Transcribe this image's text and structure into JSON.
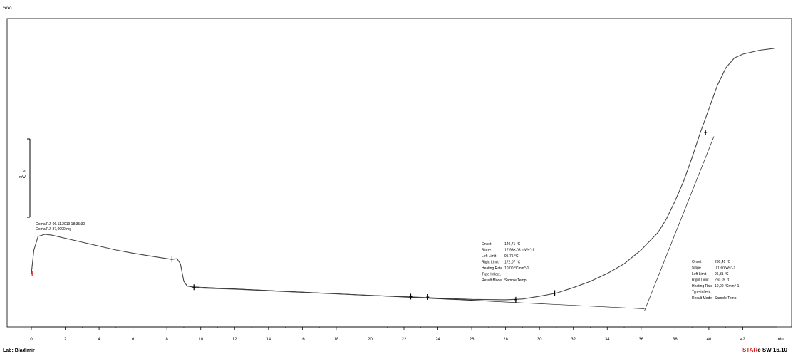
{
  "colors": {
    "curve": "#444444",
    "marker": "#d62728",
    "frame": "#000000",
    "brand": "#d62728"
  },
  "header": {
    "exo_label": "^exo"
  },
  "scale_bar": {
    "value": "20",
    "unit": "mW",
    "value_mw": 20
  },
  "sample": {
    "line1": "Goma PJ, 06.11.2019 18:35:30",
    "line2": "Goma PJ, 37,9000 mg"
  },
  "annotation1": {
    "rows": [
      {
        "key": "Onset",
        "value": "140,71 °C"
      },
      {
        "key": "Slope",
        "value": "17,93e-03 mWs^-1"
      },
      {
        "key": "Left Limit",
        "value": "95,75 °C"
      },
      {
        "key": "Right Limit",
        "value": "172,07 °C"
      },
      {
        "key": "Heating Rate",
        "value": "10,00 °Cmin^-1"
      },
      {
        "key": "Type Inflect.",
        "value": ""
      },
      {
        "key": "Result Mode",
        "value": "Sample Temp"
      }
    ]
  },
  "annotation2": {
    "rows": [
      {
        "key": "Onset",
        "value": "230,41 °C"
      },
      {
        "key": "Slope",
        "value": "0,19 mWs^-1"
      },
      {
        "key": "Left Limit",
        "value": "96,31 °C"
      },
      {
        "key": "Right Limit",
        "value": "260,09 °C"
      },
      {
        "key": "Heating Rate",
        "value": "10,00 °Cmin^-1"
      },
      {
        "key": "Type Inflect.",
        "value": ""
      },
      {
        "key": "Result Mode",
        "value": "Sample Temp"
      }
    ]
  },
  "footer": {
    "lab": "Lab: Bladimir",
    "brand_prefix": "STAR",
    "brand_suffix": "e SW 16.10"
  },
  "chart_data": {
    "type": "line",
    "xlabel": "min",
    "xlim": [
      0,
      44
    ],
    "x_ticks": [
      0,
      2,
      4,
      6,
      8,
      10,
      12,
      14,
      16,
      18,
      20,
      22,
      24,
      26,
      28,
      30,
      32,
      34,
      36,
      38,
      40,
      42
    ],
    "series": [
      {
        "values_note": "heat flow curve, y in mW (relative, exo up)",
        "x": [
          0,
          0.15,
          0.4,
          0.8,
          1.2,
          2,
          3,
          4,
          5,
          6,
          7,
          8,
          8.3,
          8.6,
          8.8,
          9.0,
          9.2,
          9.6,
          10,
          12,
          14,
          16,
          18,
          20,
          22,
          24,
          26,
          28,
          29,
          30,
          31,
          32,
          33,
          34,
          35,
          36,
          37,
          37.5,
          38,
          38.5,
          39,
          39.5,
          40,
          40.5,
          41,
          41.5,
          42,
          43,
          43.9
        ],
        "y": [
          6,
          12,
          15.5,
          16,
          15.8,
          15,
          14,
          13,
          12,
          11.2,
          10.5,
          9.8,
          9.6,
          9.8,
          8.5,
          4,
          2.8,
          2.5,
          2.3,
          2,
          1.6,
          1.2,
          0.8,
          0.4,
          0.1,
          -0.3,
          -0.6,
          -0.7,
          -0.5,
          0.2,
          1,
          2.4,
          4,
          6,
          8.5,
          12,
          16.5,
          20,
          24.5,
          29.5,
          35.5,
          42,
          48,
          54,
          58.5,
          61,
          62,
          63,
          63.5
        ]
      }
    ],
    "onset_tangents": [
      {
        "x": [
          9.5,
          27.5
        ],
        "y": [
          2.6,
          -1.1
        ]
      },
      {
        "x": [
          9.5,
          36.2
        ],
        "y": [
          2.6,
          -3.0
        ]
      },
      {
        "x": [
          36.2,
          40.3
        ],
        "y": [
          -3.5,
          41
        ]
      }
    ],
    "markers": [
      {
        "x": 0.05,
        "y": 6,
        "color": "red"
      },
      {
        "x": 8.3,
        "y": 9.6,
        "color": "red"
      },
      {
        "x": 9.6,
        "y": 2.5
      },
      {
        "x": 22.4,
        "y": 0.1
      },
      {
        "x": 23.4,
        "y": 0
      },
      {
        "x": 28.6,
        "y": -0.7
      },
      {
        "x": 30.9,
        "y": 1
      },
      {
        "x": 39.8,
        "y": 42
      }
    ]
  }
}
